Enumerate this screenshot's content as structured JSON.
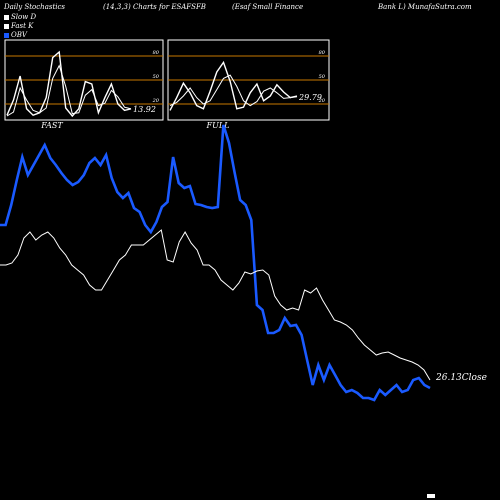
{
  "header": {
    "left": "Daily Stochastics",
    "params": "(14,3,3) Charts for ESAFSFB",
    "company": "(Esaf Small Finance",
    "site": "Bank L) MunafaSutra.com"
  },
  "legend": [
    {
      "label": "Slow D",
      "color": "#ffffff"
    },
    {
      "label": "Fast K",
      "color": "#ffffff"
    },
    {
      "label": "OBV",
      "color": "#1a5aff"
    }
  ],
  "colors": {
    "price": "#ffffff",
    "obv": "#1a5aff",
    "band": "#c87800",
    "background": "#000000"
  },
  "chart_data": [
    {
      "type": "line",
      "name": "fast-stochastic-panel",
      "panel_label": "FAST",
      "last_value_label": "13.92",
      "ylim": [
        0,
        100
      ],
      "levels": [
        20,
        50,
        80
      ],
      "tick_labels": [
        "80",
        "50",
        "20"
      ],
      "series": [
        {
          "values": [
            5,
            10,
            40,
            25,
            12,
            9,
            15,
            52,
            68,
            42,
            8,
            9,
            31,
            38,
            18,
            21,
            37,
            29,
            16,
            14
          ]
        },
        {
          "values": [
            6,
            25,
            55,
            14,
            6,
            9,
            28,
            78,
            85,
            15,
            5,
            14,
            48,
            45,
            9,
            28,
            45,
            20,
            12,
            14
          ]
        }
      ]
    },
    {
      "type": "line",
      "name": "full-stochastic-panel",
      "panel_label": "FULL",
      "last_value_label": "29.79",
      "ylim": [
        0,
        100
      ],
      "levels": [
        20,
        50,
        80
      ],
      "tick_labels": [
        "80",
        "50",
        "20"
      ],
      "series": [
        {
          "values": [
            18,
            22,
            30,
            40,
            28,
            20,
            24,
            38,
            52,
            56,
            42,
            24,
            18,
            23,
            36,
            40,
            34,
            27,
            28,
            29
          ]
        },
        {
          "values": [
            12,
            28,
            46,
            34,
            18,
            14,
            36,
            60,
            72,
            48,
            14,
            16,
            34,
            45,
            24,
            30,
            44,
            35,
            28,
            30
          ]
        }
      ]
    },
    {
      "type": "line",
      "name": "price-obv-panel",
      "last_value_label": "26.13",
      "close_label": "Close",
      "series": [
        {
          "name": "OBV",
          "values": [
            225,
            225,
            205,
            180,
            157,
            175,
            165,
            155,
            145,
            158,
            165,
            173,
            180,
            185,
            182,
            175,
            163,
            158,
            165,
            155,
            178,
            192,
            198,
            193,
            208,
            212,
            225,
            232,
            222,
            207,
            202,
            157,
            183,
            188,
            186,
            204,
            205,
            207,
            208,
            207,
            125,
            143,
            172,
            200,
            205,
            220,
            305,
            310,
            333,
            333,
            330,
            318,
            326,
            325,
            335,
            360,
            385,
            365,
            380,
            365,
            375,
            385,
            392,
            390,
            393,
            398,
            398,
            400,
            390,
            395,
            390,
            385,
            392,
            390,
            380,
            378,
            385,
            388
          ]
        },
        {
          "name": "Close",
          "values": [
            265,
            265,
            263,
            255,
            238,
            232,
            240,
            235,
            232,
            238,
            248,
            255,
            265,
            270,
            275,
            285,
            290,
            290,
            280,
            270,
            260,
            255,
            245,
            245,
            245,
            240,
            235,
            230,
            260,
            262,
            242,
            232,
            243,
            250,
            265,
            265,
            270,
            280,
            285,
            290,
            283,
            272,
            274,
            271,
            270,
            275,
            296,
            305,
            310,
            308,
            310,
            290,
            293,
            288,
            300,
            310,
            320,
            322,
            325,
            330,
            338,
            345,
            350,
            355,
            353,
            352,
            355,
            358,
            360,
            362,
            365,
            370,
            380
          ]
        }
      ]
    }
  ]
}
